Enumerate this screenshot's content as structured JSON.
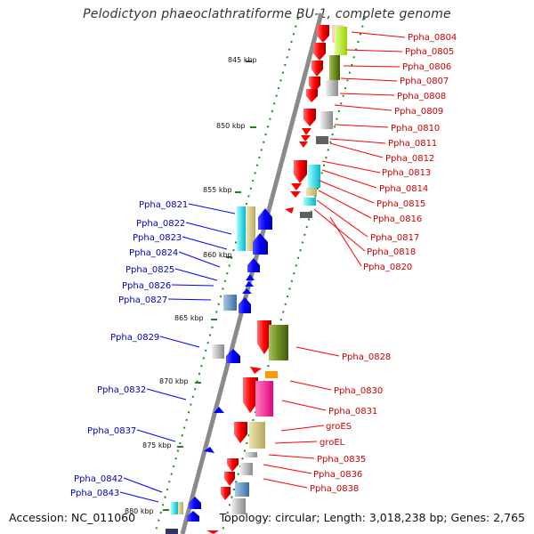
{
  "title": "Pelodictyon phaeoclathratiforme BU-1, complete genome",
  "footer": {
    "accession": "Accession: NC_011060",
    "topology": "Topology: circular; Length: 3,018,238 bp; Genes: 2,765"
  },
  "colors": {
    "forward": "#ff0000",
    "reverse": "#0000ff",
    "label_forward": "#cc0000",
    "label_reverse": "#0000bb",
    "backbone": "#888888",
    "tick": "#1a8a1a"
  },
  "kbp_ticks": [
    "845 kbp",
    "850 kbp",
    "855 kbp",
    "860 kbp",
    "865 kbp",
    "870 kbp",
    "875 kbp",
    "880 kbp"
  ],
  "labels_right": [
    "Ppha_0804",
    "Ppha_0805",
    "Ppha_0806",
    "Ppha_0807",
    "Ppha_0808",
    "Ppha_0809",
    "Ppha_0810",
    "Ppha_0811",
    "Ppha_0812",
    "Ppha_0813",
    "Ppha_0814",
    "Ppha_0815",
    "Ppha_0816",
    "Ppha_0817",
    "Ppha_0818",
    "Ppha_0820",
    "Ppha_0828",
    "Ppha_0830",
    "Ppha_0831",
    "groES",
    "groEL",
    "Ppha_0835",
    "Ppha_0836",
    "Ppha_0838"
  ],
  "labels_left": [
    "Ppha_0821",
    "Ppha_0822",
    "Ppha_0823",
    "Ppha_0824",
    "Ppha_0825",
    "Ppha_0826",
    "Ppha_0827",
    "Ppha_0829",
    "Ppha_0832",
    "Ppha_0837",
    "Ppha_0842",
    "Ppha_0843"
  ]
}
